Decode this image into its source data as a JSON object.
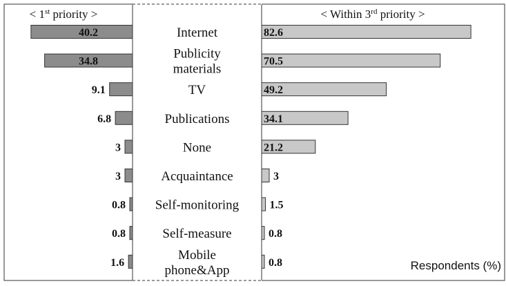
{
  "chart_data": {
    "type": "bar",
    "layout": "back-to-back horizontal bars",
    "categories": [
      [
        "Internet"
      ],
      [
        "Publicity",
        "materials"
      ],
      [
        "TV"
      ],
      [
        "Publications"
      ],
      [
        "None"
      ],
      [
        "Acquaintance"
      ],
      [
        "Self-monitoring"
      ],
      [
        "Self-measure"
      ],
      [
        "Mobile",
        "phone&App"
      ]
    ],
    "series": [
      {
        "name": "< 1st priority >",
        "header": {
          "pre": "< 1",
          "sup": "st",
          "post": " priority >"
        },
        "values": [
          40.2,
          34.8,
          9.1,
          6.8,
          3,
          3,
          0.8,
          0.8,
          1.6
        ],
        "labels": [
          "40.2",
          "34.8",
          "9.1",
          "6.8",
          "3",
          "3",
          "0.8",
          "0.8",
          "1.6"
        ],
        "color": "#8c8c8c"
      },
      {
        "name": "< Within 3rd priority >",
        "header": {
          "pre": "< Within 3",
          "sup": "rd",
          "post": " priority >"
        },
        "values": [
          82.6,
          70.5,
          49.2,
          34.1,
          21.2,
          3,
          1.5,
          0.8,
          0.8
        ],
        "labels": [
          "82.6",
          "70.5",
          "49.2",
          "34.1",
          "21.2",
          "3",
          "1.5",
          "0.8",
          "0.8"
        ],
        "color": "#c8c8c8"
      }
    ],
    "note": "Respondents (%)",
    "grid": false,
    "legend": "none"
  }
}
